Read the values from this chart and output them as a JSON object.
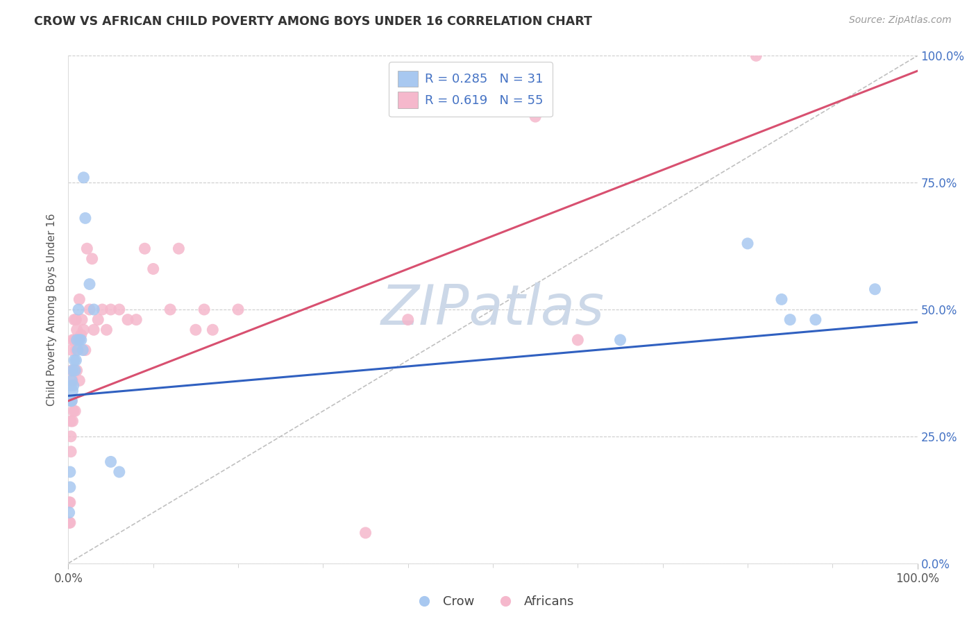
{
  "title": "CROW VS AFRICAN CHILD POVERTY AMONG BOYS UNDER 16 CORRELATION CHART",
  "source": "Source: ZipAtlas.com",
  "ylabel": "Child Poverty Among Boys Under 16",
  "ytick_labels": [
    "0.0%",
    "25.0%",
    "50.0%",
    "75.0%",
    "100.0%"
  ],
  "ytick_values": [
    0.0,
    0.25,
    0.5,
    0.75,
    1.0
  ],
  "xtick_labels": [
    "0.0%",
    "100.0%"
  ],
  "xtick_values": [
    0.0,
    1.0
  ],
  "crow_R": "0.285",
  "crow_N": "31",
  "africans_R": "0.619",
  "africans_N": "55",
  "crow_fill_color": "#a8c8f0",
  "africans_fill_color": "#f5b8cc",
  "crow_line_color": "#3060c0",
  "africans_line_color": "#d85070",
  "diagonal_color": "#c0c0c0",
  "background_color": "#ffffff",
  "grid_color": "#cccccc",
  "crow_points": [
    [
      0.001,
      0.1
    ],
    [
      0.002,
      0.15
    ],
    [
      0.002,
      0.18
    ],
    [
      0.003,
      0.32
    ],
    [
      0.003,
      0.35
    ],
    [
      0.004,
      0.32
    ],
    [
      0.004,
      0.36
    ],
    [
      0.005,
      0.34
    ],
    [
      0.005,
      0.38
    ],
    [
      0.006,
      0.35
    ],
    [
      0.007,
      0.4
    ],
    [
      0.008,
      0.38
    ],
    [
      0.009,
      0.4
    ],
    [
      0.01,
      0.44
    ],
    [
      0.011,
      0.42
    ],
    [
      0.012,
      0.5
    ],
    [
      0.013,
      0.44
    ],
    [
      0.015,
      0.44
    ],
    [
      0.017,
      0.42
    ],
    [
      0.018,
      0.76
    ],
    [
      0.02,
      0.68
    ],
    [
      0.025,
      0.55
    ],
    [
      0.03,
      0.5
    ],
    [
      0.05,
      0.2
    ],
    [
      0.06,
      0.18
    ],
    [
      0.65,
      0.44
    ],
    [
      0.8,
      0.63
    ],
    [
      0.84,
      0.52
    ],
    [
      0.85,
      0.48
    ],
    [
      0.88,
      0.48
    ],
    [
      0.95,
      0.54
    ]
  ],
  "africans_points": [
    [
      0.001,
      0.08
    ],
    [
      0.001,
      0.12
    ],
    [
      0.002,
      0.08
    ],
    [
      0.002,
      0.12
    ],
    [
      0.003,
      0.22
    ],
    [
      0.003,
      0.25
    ],
    [
      0.003,
      0.28
    ],
    [
      0.004,
      0.32
    ],
    [
      0.004,
      0.38
    ],
    [
      0.004,
      0.42
    ],
    [
      0.005,
      0.28
    ],
    [
      0.005,
      0.36
    ],
    [
      0.005,
      0.44
    ],
    [
      0.006,
      0.3
    ],
    [
      0.006,
      0.38
    ],
    [
      0.007,
      0.38
    ],
    [
      0.007,
      0.44
    ],
    [
      0.007,
      0.48
    ],
    [
      0.008,
      0.3
    ],
    [
      0.008,
      0.44
    ],
    [
      0.009,
      0.42
    ],
    [
      0.009,
      0.48
    ],
    [
      0.01,
      0.38
    ],
    [
      0.01,
      0.46
    ],
    [
      0.012,
      0.44
    ],
    [
      0.013,
      0.36
    ],
    [
      0.013,
      0.52
    ],
    [
      0.015,
      0.45
    ],
    [
      0.016,
      0.48
    ],
    [
      0.018,
      0.46
    ],
    [
      0.02,
      0.42
    ],
    [
      0.022,
      0.62
    ],
    [
      0.025,
      0.5
    ],
    [
      0.028,
      0.6
    ],
    [
      0.03,
      0.46
    ],
    [
      0.035,
      0.48
    ],
    [
      0.04,
      0.5
    ],
    [
      0.045,
      0.46
    ],
    [
      0.05,
      0.5
    ],
    [
      0.06,
      0.5
    ],
    [
      0.07,
      0.48
    ],
    [
      0.08,
      0.48
    ],
    [
      0.09,
      0.62
    ],
    [
      0.1,
      0.58
    ],
    [
      0.12,
      0.5
    ],
    [
      0.13,
      0.62
    ],
    [
      0.15,
      0.46
    ],
    [
      0.16,
      0.5
    ],
    [
      0.17,
      0.46
    ],
    [
      0.2,
      0.5
    ],
    [
      0.35,
      0.06
    ],
    [
      0.4,
      0.48
    ],
    [
      0.55,
      0.88
    ],
    [
      0.6,
      0.44
    ],
    [
      0.81,
      1.0
    ]
  ],
  "crow_intercept": 0.33,
  "crow_slope": 0.145,
  "africans_intercept": 0.32,
  "africans_slope": 0.65,
  "xlim": [
    0.0,
    1.0
  ],
  "ylim": [
    0.0,
    1.0
  ],
  "watermark_text": "ZIPatlas",
  "watermark_color": "#ccd8e8",
  "right_tick_color": "#4472c4",
  "legend_number_color": "#4472c4",
  "legend_text_color": "#333333"
}
